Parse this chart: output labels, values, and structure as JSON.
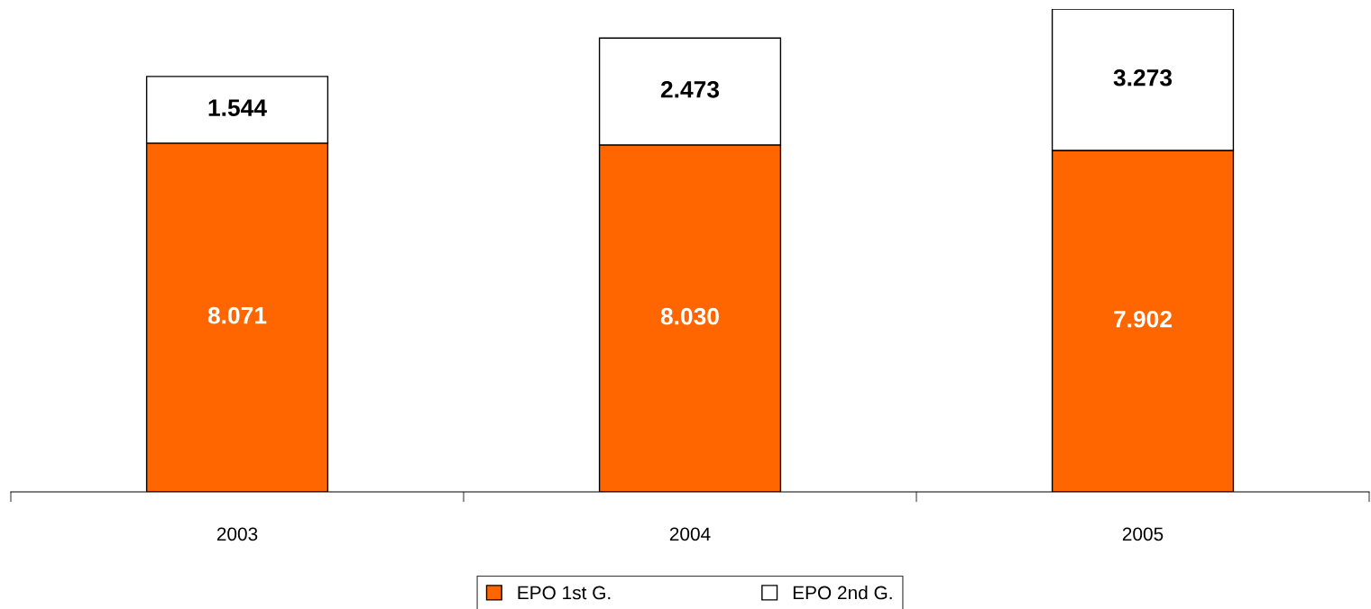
{
  "chart_data": {
    "type": "bar",
    "stacked": true,
    "legend": "bottom",
    "grid": false,
    "categories": [
      "2003",
      "2004",
      "2005"
    ],
    "series": [
      {
        "name": "EPO 1st G.",
        "color": "#ff6600",
        "values": [
          8.071,
          8.03,
          7.902
        ],
        "value_labels": [
          "8.071",
          "8.030",
          "7.902"
        ]
      },
      {
        "name": "EPO 2nd G.",
        "color": "#ffffff",
        "values": [
          1.544,
          2.473,
          3.273
        ],
        "value_labels": [
          "1.544",
          "2.473",
          "3.273"
        ]
      }
    ]
  }
}
